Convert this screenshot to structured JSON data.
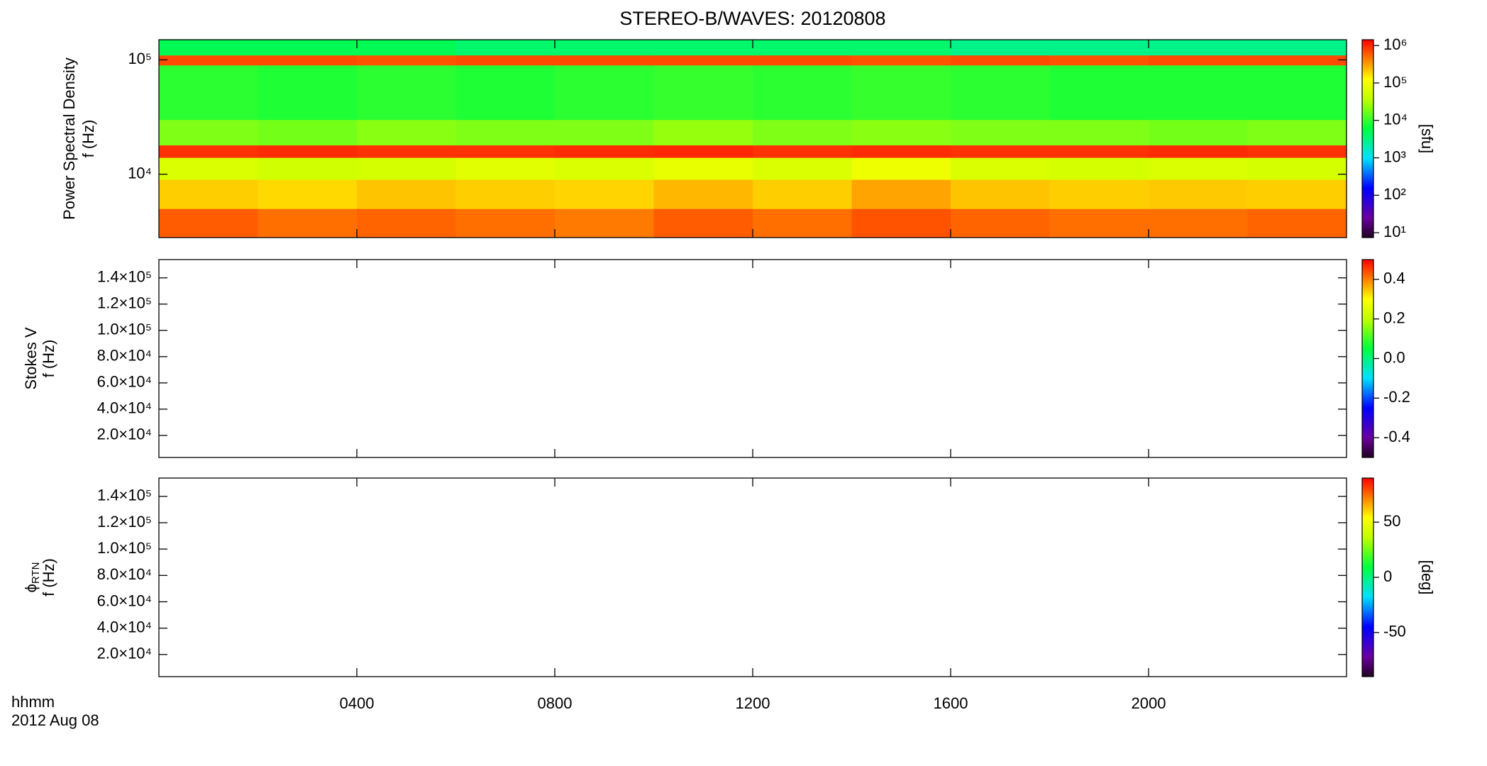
{
  "chart_data": [
    {
      "type": "heatmap",
      "title": "STEREO-B/WAVES: 20120808",
      "ylabel": "Power Spectral Density",
      "ylabel2": "f (Hz)",
      "ylog": true,
      "ylim": [
        2790,
        150000
      ],
      "yticks": [
        {
          "value": 10000,
          "label": "10⁴"
        },
        {
          "value": 100000,
          "label": "10⁵"
        }
      ],
      "x_bins": [
        0,
        2,
        4,
        6,
        8,
        10,
        12,
        14,
        16,
        18,
        20,
        22,
        24
      ],
      "y_bins": [
        2790,
        5000,
        9000,
        14000,
        18000,
        30000,
        90000,
        110000,
        150000
      ],
      "z": [
        [
          600000,
          500000,
          550000,
          500000,
          450000,
          600000,
          500000,
          650000,
          550000,
          500000,
          500000,
          550000
        ],
        [
          200000,
          180000,
          220000,
          200000,
          190000,
          250000,
          200000,
          300000,
          220000,
          200000,
          210000,
          200000
        ],
        [
          60000,
          50000,
          55000,
          70000,
          60000,
          80000,
          60000,
          90000,
          60000,
          55000,
          60000,
          55000
        ],
        [
          900000,
          950000,
          900000,
          900000,
          950000,
          1000000,
          900000,
          950000,
          900000,
          900000,
          950000,
          900000
        ],
        [
          20000,
          18000,
          22000,
          20000,
          20000,
          25000,
          20000,
          22000,
          20000,
          20000,
          18000,
          20000
        ],
        [
          9000,
          8000,
          9000,
          8000,
          9000,
          10000,
          9000,
          10000,
          9000,
          8000,
          8000,
          8000
        ],
        [
          700000,
          700000,
          650000,
          700000,
          700000,
          700000,
          700000,
          650000,
          700000,
          650000,
          700000,
          700000
        ],
        [
          5000,
          5000,
          5000,
          4000,
          4000,
          4000,
          4000,
          4000,
          3000,
          3000,
          3000,
          3000
        ]
      ],
      "zlog": true,
      "zlim": [
        7.4,
        1430000
      ],
      "zticks": [
        {
          "value": 10,
          "label": "10¹"
        },
        {
          "value": 100,
          "label": "10²"
        },
        {
          "value": 1000,
          "label": "10³"
        },
        {
          "value": 10000,
          "label": "10⁴"
        },
        {
          "value": 100000,
          "label": "10⁵"
        },
        {
          "value": 1000000,
          "label": "10⁶"
        }
      ],
      "zlabel": "[sfu]"
    },
    {
      "type": "heatmap",
      "ylabel": "Stokes V",
      "ylabel2": "f (Hz)",
      "ylog": false,
      "ylim": [
        3200,
        153900
      ],
      "yticks": [
        {
          "value": 20000,
          "label": "2.0×10⁴"
        },
        {
          "value": 40000,
          "label": "4.0×10⁴"
        },
        {
          "value": 60000,
          "label": "6.0×10⁴"
        },
        {
          "value": 80000,
          "label": "8.0×10⁴"
        },
        {
          "value": 100000,
          "label": "1.0×10⁵"
        },
        {
          "value": 120000,
          "label": "1.2×10⁵"
        },
        {
          "value": 140000,
          "label": "1.4×10⁵"
        }
      ],
      "zlog": false,
      "zlim": [
        -0.5,
        0.5
      ],
      "zticks": [
        -0.4,
        -0.2,
        {
          "value": 0,
          "label": "0.0"
        },
        0.2,
        0.4
      ]
    },
    {
      "type": "heatmap",
      "ylabel": "ϕ",
      "ylabel_sub": "RTN",
      "ylabel2": "f (Hz)",
      "ylog": false,
      "ylim": [
        3200,
        153900
      ],
      "yticks": [
        {
          "value": 20000,
          "label": "2.0×10⁴"
        },
        {
          "value": 40000,
          "label": "4.0×10⁴"
        },
        {
          "value": 60000,
          "label": "6.0×10⁴"
        },
        {
          "value": 80000,
          "label": "8.0×10⁴"
        },
        {
          "value": 100000,
          "label": "1.0×10⁵"
        },
        {
          "value": 120000,
          "label": "1.2×10⁵"
        },
        {
          "value": 140000,
          "label": "1.4×10⁵"
        }
      ],
      "zlog": false,
      "zlim": [
        -90,
        90
      ],
      "zticks": [
        -50,
        0,
        50
      ],
      "zlabel": "[deg]",
      "xlim": [
        0,
        24
      ],
      "xticks": [
        {
          "value": 4,
          "label": "0400"
        },
        {
          "value": 8,
          "label": "0800"
        },
        {
          "value": 12,
          "label": "1200"
        },
        {
          "value": 16,
          "label": "1600"
        },
        {
          "value": 20,
          "label": "2000"
        }
      ],
      "xlabel": "hhmm",
      "xlabel2": "2012 Aug 08"
    }
  ]
}
